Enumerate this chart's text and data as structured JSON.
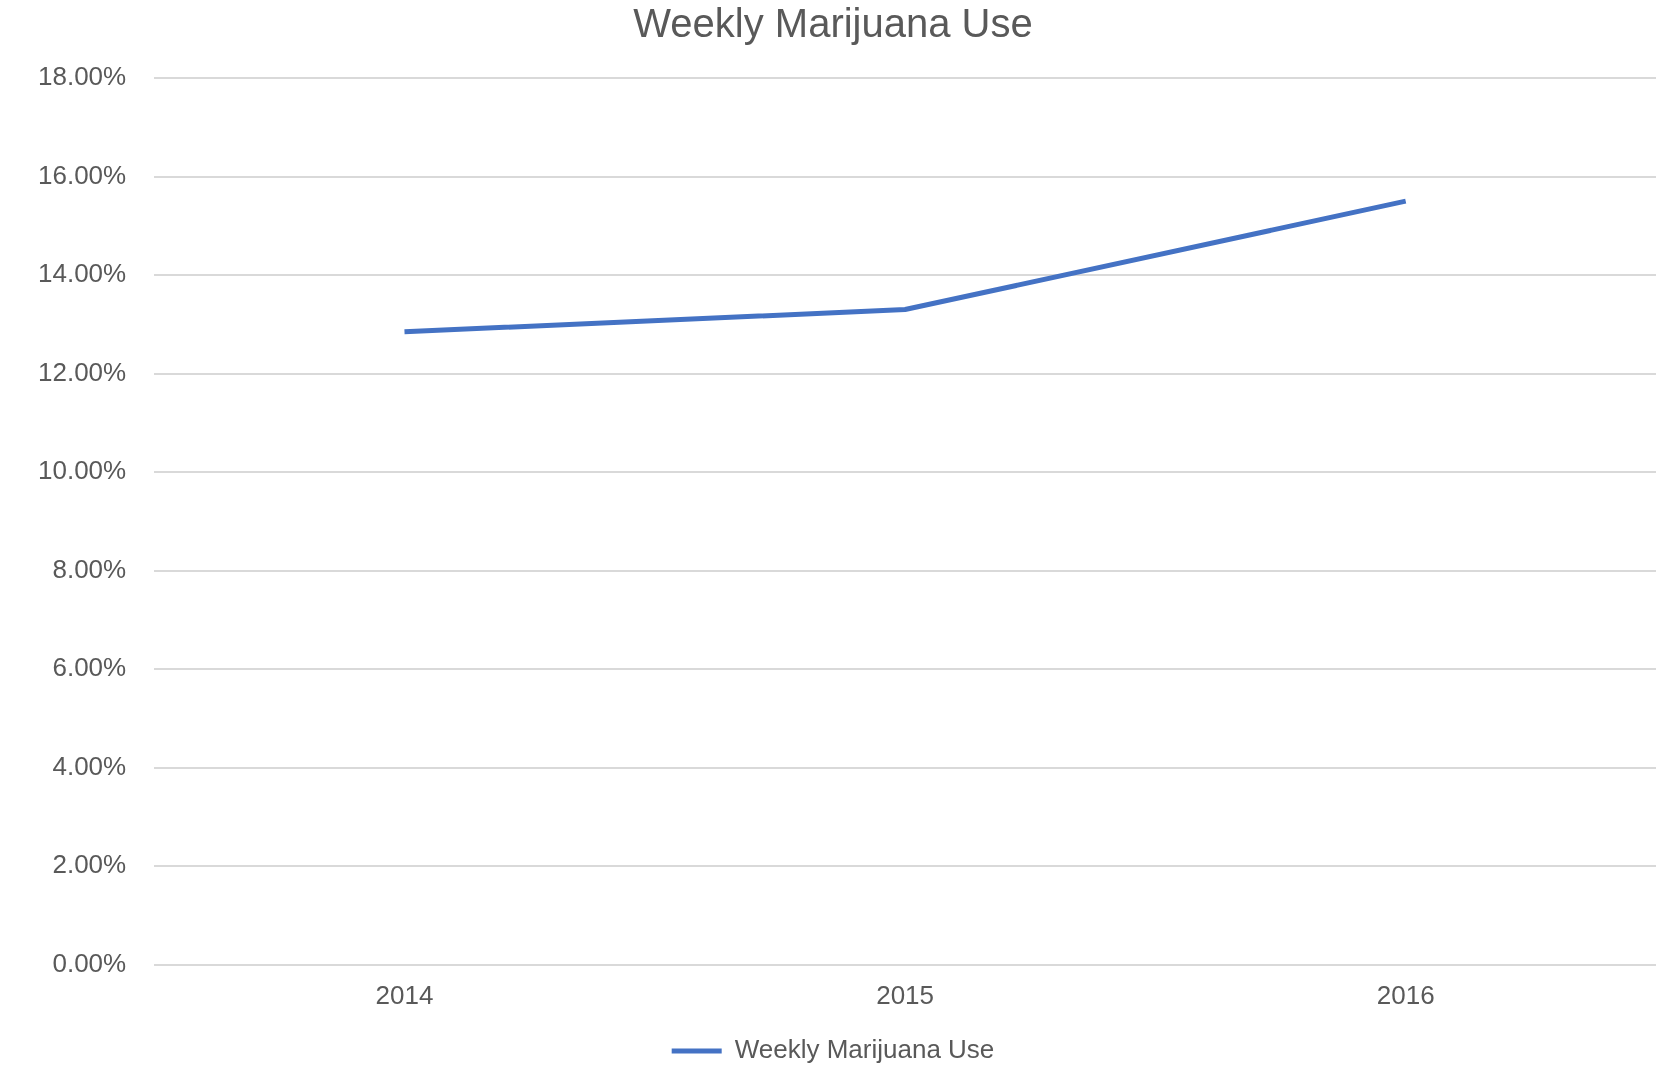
{
  "chart_data": {
    "type": "line",
    "title": "Weekly Marijuana Use",
    "categories": [
      "2014",
      "2015",
      "2016"
    ],
    "series": [
      {
        "name": "Weekly Marijuana Use",
        "color": "#4472c4",
        "values": [
          12.85,
          13.3,
          15.5
        ]
      }
    ],
    "ylim": [
      0,
      18
    ],
    "yticks": [
      {
        "value": 0,
        "label": "0.00%"
      },
      {
        "value": 2,
        "label": "2.00%"
      },
      {
        "value": 4,
        "label": "4.00%"
      },
      {
        "value": 6,
        "label": "6.00%"
      },
      {
        "value": 8,
        "label": "8.00%"
      },
      {
        "value": 10,
        "label": "10.00%"
      },
      {
        "value": 12,
        "label": "12.00%"
      },
      {
        "value": 14,
        "label": "14.00%"
      },
      {
        "value": 16,
        "label": "16.00%"
      },
      {
        "value": 18,
        "label": "18.00%"
      }
    ],
    "grid": "y",
    "legend": "bottom",
    "marker": "none",
    "line_style": "solid"
  }
}
